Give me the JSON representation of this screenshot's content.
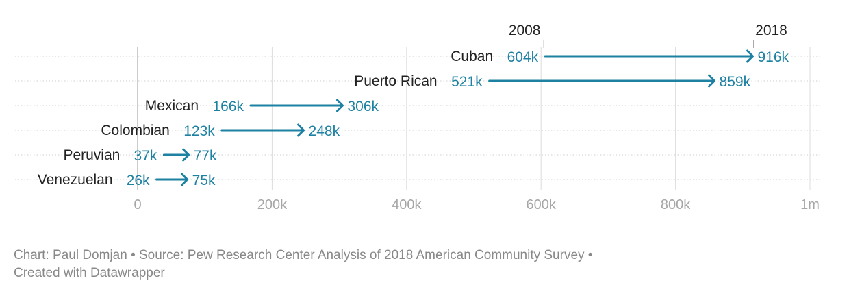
{
  "chart_data": {
    "type": "arrow",
    "title": "",
    "series": [
      {
        "name": "2008"
      },
      {
        "name": "2018"
      }
    ],
    "categories": [
      "Cuban",
      "Puerto Rican",
      "Mexican",
      "Colombian",
      "Peruvian",
      "Venezuelan"
    ],
    "rows": [
      {
        "label": "Cuban",
        "start": 604000,
        "end": 916000,
        "start_label": "604k",
        "end_label": "916k"
      },
      {
        "label": "Puerto Rican",
        "start": 521000,
        "end": 859000,
        "start_label": "521k",
        "end_label": "859k"
      },
      {
        "label": "Mexican",
        "start": 166000,
        "end": 306000,
        "start_label": "166k",
        "end_label": "306k"
      },
      {
        "label": "Colombian",
        "start": 123000,
        "end": 248000,
        "start_label": "123k",
        "end_label": "248k"
      },
      {
        "label": "Peruvian",
        "start": 37000,
        "end": 77000,
        "start_label": "37k",
        "end_label": "77k"
      },
      {
        "label": "Venezuelan",
        "start": 26000,
        "end": 75000,
        "start_label": "26k",
        "end_label": "75k"
      }
    ],
    "x_ticks": [
      {
        "value": 0,
        "label": "0"
      },
      {
        "value": 200000,
        "label": "200k"
      },
      {
        "value": 400000,
        "label": "400k"
      },
      {
        "value": 600000,
        "label": "600k"
      },
      {
        "value": 800000,
        "label": "800k"
      },
      {
        "value": 1000000,
        "label": "1m"
      }
    ],
    "xlim": [
      0,
      1000000
    ],
    "grid": true,
    "colors": {
      "arrow": "#1d81a2",
      "value_label": "#1d81a2",
      "category_label": "#222222",
      "tick_label": "#a6a6a6",
      "grid": "#dddddd"
    }
  },
  "footer": {
    "line1": "Chart: Paul Domjan • Source: Pew Research Center Analysis of 2018 American Community Survey •",
    "line2": "Created with Datawrapper"
  }
}
